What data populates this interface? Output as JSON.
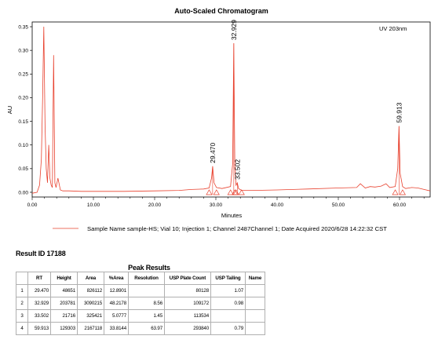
{
  "chart_data": {
    "type": "line",
    "title": "Auto-Scaled Chromatogram",
    "detector_label": "UV 203nm",
    "xlabel": "Minutes",
    "ylabel": "AU",
    "xlim": [
      0,
      65
    ],
    "ylim": [
      -0.01,
      0.36
    ],
    "x_ticks": [
      "0.00",
      "10.00",
      "20.00",
      "30.00",
      "40.00",
      "50.00",
      "60.00"
    ],
    "x_tick_values": [
      0,
      10,
      20,
      30,
      40,
      50,
      60
    ],
    "y_ticks": [
      "0.00",
      "0.05",
      "0.10",
      "0.15",
      "0.20",
      "0.25",
      "0.30",
      "0.35"
    ],
    "y_tick_values": [
      0,
      0.05,
      0.1,
      0.15,
      0.2,
      0.25,
      0.3,
      0.35
    ],
    "grid": false,
    "line_color": "#e8412e",
    "series": [
      {
        "x": [
          0,
          0.8,
          1.2,
          1.5,
          1.7,
          1.9,
          2.1,
          2.3,
          2.5,
          2.7,
          2.9,
          3.1,
          3.3,
          3.5,
          3.7,
          3.9,
          4.2,
          4.6,
          5,
          6,
          8,
          10,
          15,
          20,
          24,
          26,
          28,
          28.9,
          29.3,
          29.47,
          29.7,
          30.1,
          31,
          32.4,
          32.75,
          32.929,
          33.1,
          33.3,
          33.502,
          33.7,
          34.2,
          36,
          40,
          45,
          50,
          53,
          53.6,
          54.4,
          55.2,
          56,
          57,
          57.8,
          58.4,
          59.3,
          59.7,
          59.913,
          60.1,
          60.5,
          61,
          62,
          63,
          64,
          65
        ],
        "y": [
          -0.002,
          0,
          0.015,
          0.07,
          0.2,
          0.35,
          0.14,
          0.05,
          0.02,
          0.1,
          0.03,
          0.015,
          0.01,
          0.29,
          0.02,
          0.01,
          0.03,
          0.005,
          0.003,
          0.003,
          0.002,
          0.002,
          0.002,
          0.003,
          0.004,
          0.006,
          0.007,
          0.009,
          0.03,
          0.055,
          0.02,
          0.01,
          0.008,
          0.012,
          0.06,
          0.315,
          0.05,
          0.015,
          0.02,
          0.008,
          0.004,
          0.004,
          0.005,
          0.007,
          0.009,
          0.01,
          0.018,
          0.009,
          0.012,
          0.011,
          0.013,
          0.018,
          0.01,
          0.012,
          0.05,
          0.14,
          0.04,
          0.012,
          0.008,
          0.01,
          0.009,
          0.006,
          0.003
        ]
      }
    ],
    "peak_labels": [
      {
        "rt": 29.47,
        "label": "29.470",
        "height": 0.055
      },
      {
        "rt": 32.929,
        "label": "32.929",
        "height": 0.315
      },
      {
        "rt": 33.502,
        "label": "33.502",
        "height": 0.02
      },
      {
        "rt": 59.913,
        "label": "59.913",
        "height": 0.14
      }
    ],
    "integration_markers_x": [
      28.9,
      30.1,
      32.4,
      33.1,
      33.3,
      34.2,
      59.3,
      60.5
    ],
    "legend": "Sample Name sample-HS; Vial 10; Injection 1; Channel 2487Channel 1; Date Acquired 2020/6/28 14:22:32 CST"
  },
  "result_id": "Result ID 17188",
  "peak_results": {
    "title": "Peak Results",
    "columns": [
      "",
      "RT",
      "Height",
      "Area",
      "%Area",
      "Resolution",
      "USP Plate Count",
      "USP Tailing",
      "Name"
    ],
    "rows": [
      [
        "1",
        "29.470",
        "48651",
        "826112",
        "12.8901",
        "",
        "80128",
        "1.07",
        ""
      ],
      [
        "2",
        "32.929",
        "203781",
        "3090215",
        "48.2178",
        "8.56",
        "109172",
        "0.98",
        ""
      ],
      [
        "3",
        "33.502",
        "21716",
        "325421",
        "5.0777",
        "1.45",
        "113534",
        "",
        ""
      ],
      [
        "4",
        "59.913",
        "129303",
        "2167118",
        "33.8144",
        "63.97",
        "293840",
        "0.79",
        ""
      ]
    ]
  }
}
